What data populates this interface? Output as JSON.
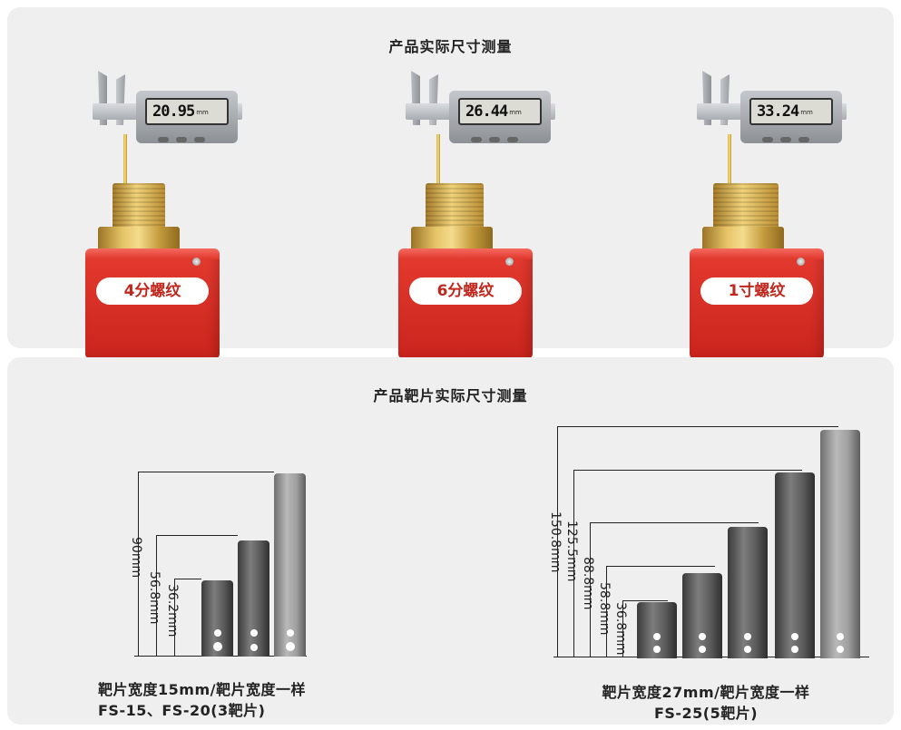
{
  "top_panel": {
    "title": "产品实际尺寸测量",
    "products": [
      {
        "reading": "20.95",
        "unit": "mm",
        "label": "4分螺纹"
      },
      {
        "reading": "26.44",
        "unit": "mm",
        "label": "6分螺纹"
      },
      {
        "reading": "33.24",
        "unit": "mm",
        "label": "1寸螺纹"
      }
    ]
  },
  "bottom_panel": {
    "title": "产品靶片实际尺寸测量",
    "left_group": {
      "dimensions": [
        "90mm",
        "56.8mm",
        "36.2mm"
      ],
      "caption_line1": "靶片宽度15mm/靶片宽度一样",
      "caption_line2": "FS-15、FS-20(3靶片)"
    },
    "right_group": {
      "dimensions": [
        "150.8mm",
        "125.5mm",
        "88.8mm",
        "58.8mm",
        "36.8mm"
      ],
      "caption_line1": "靶片宽度27mm/靶片宽度一样",
      "caption_line2": "FS-25(5靶片)"
    }
  }
}
